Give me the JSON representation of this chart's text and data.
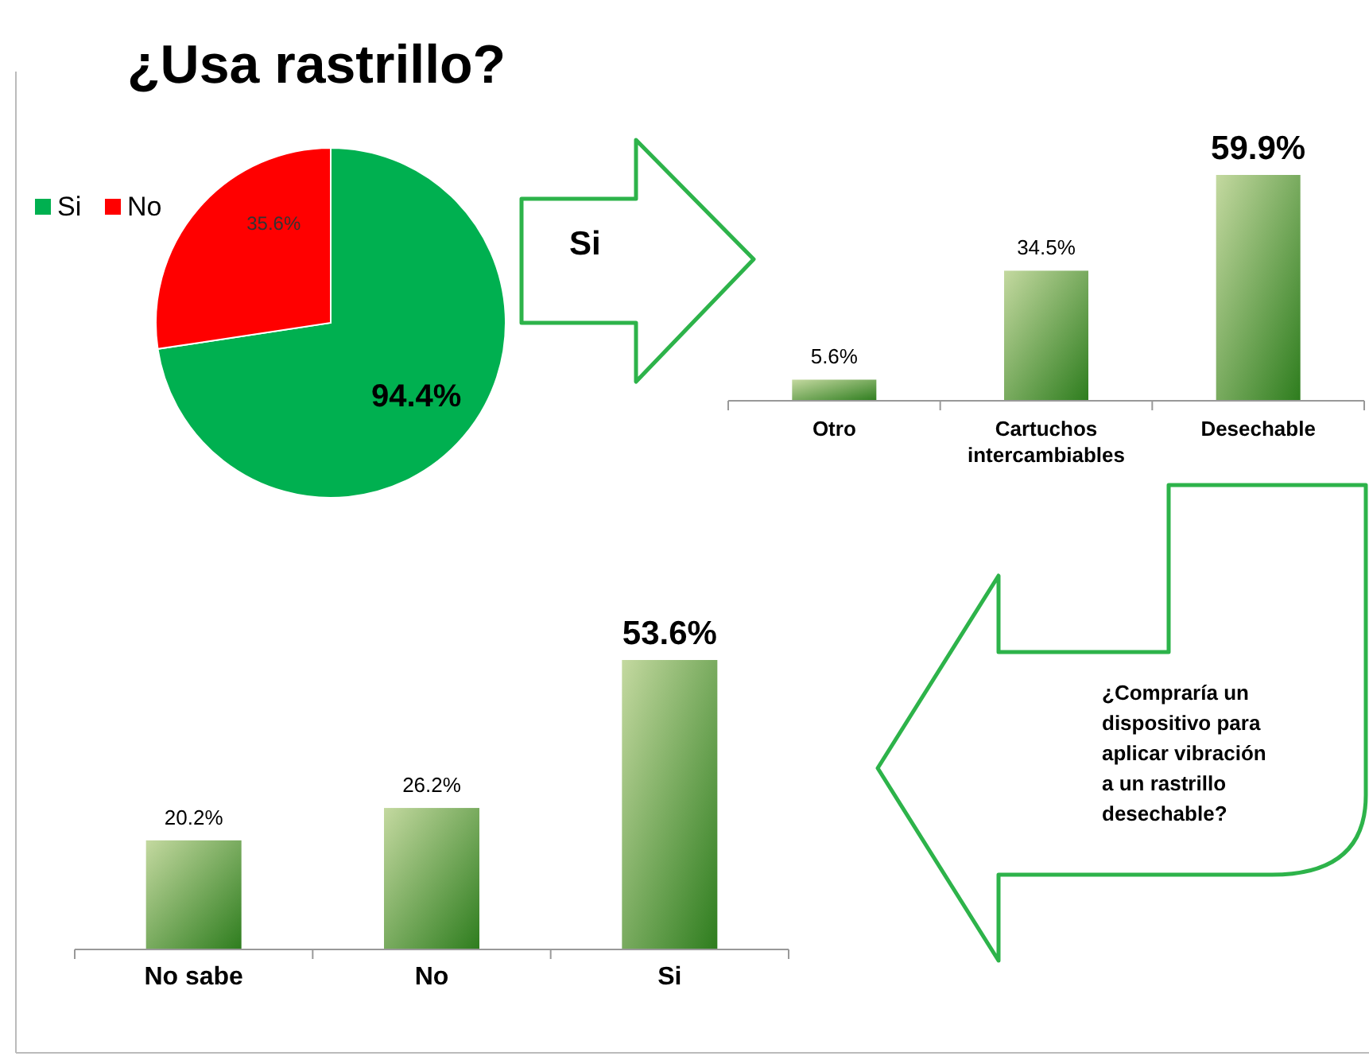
{
  "chart_data": [
    {
      "type": "pie",
      "title": "¿Usa rastrillo?",
      "categories": [
        "Si",
        "No"
      ],
      "values": [
        94.4,
        35.6
      ],
      "colors": [
        "#00b050",
        "#ff0000"
      ],
      "value_labels": [
        "94.4%",
        "35.6%"
      ],
      "legend": "left"
    },
    {
      "type": "bar",
      "categories": [
        "Otro",
        "Cartuchos intercambiables",
        "Desechable"
      ],
      "values": [
        5.6,
        34.5,
        59.9
      ],
      "color": "#2e7d1e",
      "value_labels": [
        "5.6%",
        "34.5%",
        "59.9%"
      ],
      "annotations": [
        "Si"
      ]
    },
    {
      "type": "bar",
      "categories": [
        "No sabe",
        "No",
        "Si"
      ],
      "values": [
        20.2,
        26.2,
        53.6
      ],
      "color": "#2e7d1e",
      "value_labels": [
        "20.2%",
        "26.2%",
        "53.6%"
      ],
      "annotations": [
        "¿Compraría un dispositivo para aplicar vibración a un rastrillo desechable?"
      ]
    }
  ]
}
